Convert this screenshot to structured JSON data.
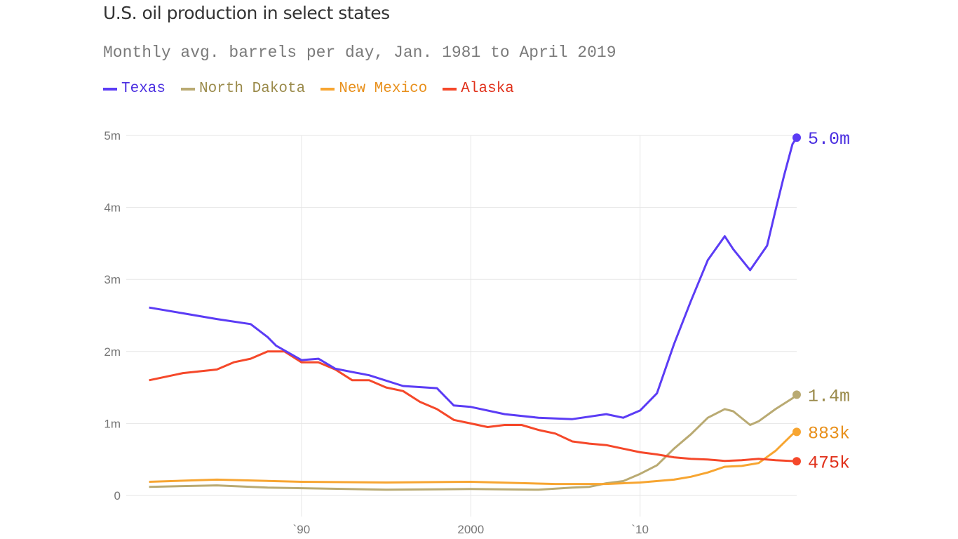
{
  "chart_data": {
    "type": "line",
    "title": "U.S. oil production in select states",
    "subtitle": "Monthly avg. barrels per day, Jan. 1981 to April 2019",
    "xlim": [
      1981,
      2019.25
    ],
    "ylim": [
      0,
      5000000
    ],
    "grid": true,
    "legend_placement": "top-left",
    "y_ticks": [
      {
        "value": 0,
        "label": "0"
      },
      {
        "value": 1000000,
        "label": "1m"
      },
      {
        "value": 2000000,
        "label": "2m"
      },
      {
        "value": 3000000,
        "label": "3m"
      },
      {
        "value": 4000000,
        "label": "4m"
      },
      {
        "value": 5000000,
        "label": "5m"
      }
    ],
    "x_ticks": [
      {
        "value": 1990,
        "label": "`90"
      },
      {
        "value": 2000,
        "label": "2000"
      },
      {
        "value": 2010,
        "label": "`10"
      }
    ],
    "series": [
      {
        "name": "Texas",
        "color": "#5b3cf5",
        "label_color": "#4a2ee0",
        "end_label": "5.0m",
        "x": [
          1981,
          1983,
          1985,
          1987,
          1988,
          1988.5,
          1990,
          1991,
          1992,
          1994,
          1996,
          1998,
          1999,
          2000,
          2002,
          2004,
          2006,
          2008,
          2009,
          2010,
          2011,
          2012,
          2013,
          2014,
          2015,
          2015.5,
          2016.5,
          2017.5,
          2018,
          2018.5,
          2019,
          2019.25
        ],
        "y": [
          2610000,
          2530000,
          2450000,
          2380000,
          2200000,
          2080000,
          1880000,
          1900000,
          1760000,
          1670000,
          1520000,
          1490000,
          1250000,
          1230000,
          1130000,
          1080000,
          1060000,
          1130000,
          1080000,
          1180000,
          1420000,
          2100000,
          2700000,
          3270000,
          3600000,
          3420000,
          3130000,
          3470000,
          3960000,
          4440000,
          4880000,
          4970000
        ]
      },
      {
        "name": "North Dakota",
        "color": "#b9aa72",
        "label_color": "#9a8a4a",
        "end_label": "1.4m",
        "x": [
          1981,
          1985,
          1988,
          1995,
          2000,
          2004,
          2006,
          2007,
          2008,
          2009,
          2010,
          2011,
          2012,
          2013,
          2014,
          2015,
          2015.5,
          2016.5,
          2017,
          2018,
          2019,
          2019.25
        ],
        "y": [
          120000,
          140000,
          110000,
          80000,
          90000,
          80000,
          110000,
          120000,
          170000,
          200000,
          300000,
          420000,
          650000,
          850000,
          1080000,
          1200000,
          1170000,
          980000,
          1030000,
          1200000,
          1350000,
          1400000
        ]
      },
      {
        "name": "New Mexico",
        "color": "#f7a531",
        "label_color": "#e8901c",
        "end_label": "883k",
        "x": [
          1981,
          1985,
          1990,
          1995,
          2000,
          2005,
          2008,
          2010,
          2012,
          2013,
          2014,
          2015,
          2016,
          2017,
          2018,
          2019,
          2019.25
        ],
        "y": [
          190000,
          220000,
          190000,
          180000,
          190000,
          160000,
          160000,
          180000,
          220000,
          260000,
          320000,
          400000,
          410000,
          450000,
          620000,
          850000,
          883000
        ]
      },
      {
        "name": "Alaska",
        "color": "#f5482a",
        "label_color": "#e0301a",
        "end_label": "475k",
        "x": [
          1981,
          1983,
          1985,
          1986,
          1987,
          1988,
          1989,
          1990,
          1991,
          1992,
          1993,
          1994,
          1995,
          1996,
          1997,
          1998,
          1999,
          2000,
          2001,
          2002,
          2003,
          2004,
          2005,
          2006,
          2007,
          2008,
          2009,
          2010,
          2011,
          2012,
          2013,
          2014,
          2015,
          2016,
          2017,
          2018,
          2019.25
        ],
        "y": [
          1600000,
          1700000,
          1750000,
          1850000,
          1900000,
          2000000,
          2000000,
          1850000,
          1850000,
          1750000,
          1600000,
          1600000,
          1500000,
          1450000,
          1300000,
          1200000,
          1050000,
          1000000,
          950000,
          980000,
          980000,
          910000,
          860000,
          750000,
          720000,
          700000,
          650000,
          600000,
          570000,
          530000,
          510000,
          500000,
          480000,
          490000,
          510000,
          490000,
          475000
        ]
      }
    ]
  }
}
